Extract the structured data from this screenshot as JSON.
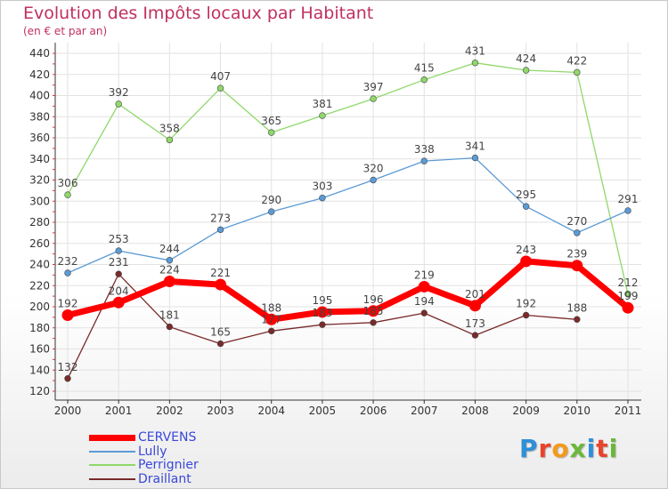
{
  "header": {
    "title": "Evolution des Impôts locaux par Habitant",
    "subtitle": "(en € et par an)"
  },
  "logo": {
    "text": "Proxiti"
  },
  "chart_data": {
    "type": "line",
    "x": [
      "2000",
      "2001",
      "2002",
      "2003",
      "2004",
      "2005",
      "2006",
      "2007",
      "2008",
      "2009",
      "2010",
      "2011"
    ],
    "yticks": [
      120,
      140,
      160,
      180,
      200,
      220,
      240,
      260,
      280,
      300,
      320,
      340,
      360,
      380,
      400,
      420,
      440
    ],
    "ylim": [
      120,
      440
    ],
    "grid": true,
    "legend_position": "bottom-left",
    "series": [
      {
        "name": "CERVENS",
        "color": "#ff0000",
        "values": [
          192,
          204,
          224,
          221,
          188,
          195,
          196,
          219,
          201,
          243,
          239,
          199
        ],
        "labels": [
          "192",
          "204",
          "224",
          "221",
          "188",
          "195",
          "196",
          "219",
          "201",
          "243",
          "239",
          "199"
        ]
      },
      {
        "name": "Lully",
        "color": "#5b9bd5",
        "values": [
          232,
          253,
          244,
          273,
          290,
          303,
          320,
          338,
          341,
          295,
          270,
          291
        ],
        "labels": [
          "232",
          "253",
          "244",
          "273",
          "290",
          "303",
          "320",
          "338",
          "341",
          "295",
          "270",
          "291"
        ]
      },
      {
        "name": "Perrignier",
        "color": "#8fd86a",
        "values": [
          306,
          392,
          358,
          407,
          365,
          381,
          397,
          415,
          431,
          424,
          422,
          212
        ],
        "labels": [
          "306",
          "392",
          "358",
          "407",
          "365",
          "381",
          "397",
          "415",
          "431",
          "424",
          "422",
          "212"
        ]
      },
      {
        "name": "Draillant",
        "color": "#7a2a2a",
        "values": [
          132,
          231,
          181,
          165,
          177,
          183,
          185,
          194,
          173,
          192,
          188,
          null
        ],
        "labels": [
          "132",
          "231",
          "181",
          "165",
          "177",
          "183",
          "185",
          "194",
          "173",
          "192",
          "188",
          ""
        ]
      }
    ]
  }
}
